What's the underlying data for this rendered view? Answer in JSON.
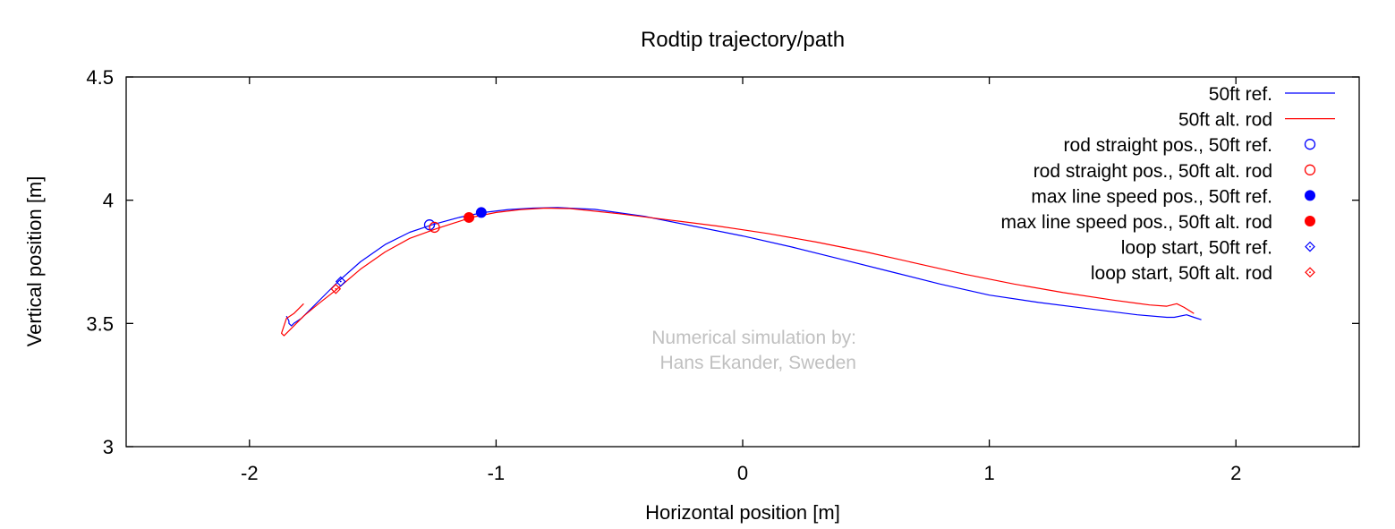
{
  "chart_data": {
    "type": "line",
    "title": "Rodtip trajectory/path",
    "xlabel": "Horizontal position [m]",
    "ylabel": "Vertical position [m]",
    "xlim": [
      -2.5,
      2.5
    ],
    "ylim": [
      3.0,
      4.5
    ],
    "xticks": [
      -2,
      -1,
      0,
      1,
      2
    ],
    "yticks": [
      3,
      3.5,
      4,
      4.5
    ],
    "xtick_labels": [
      "-2",
      "-1",
      "0",
      "1",
      "2"
    ],
    "ytick_labels": [
      "3",
      "3.5",
      "4",
      "4.5"
    ],
    "grid": false,
    "legend_position": "top-right",
    "annotation": [
      "Numerical simulation by:",
      "Hans Ekander, Sweden"
    ],
    "colors": {
      "ref": "#0000ff",
      "alt": "#ff0000"
    },
    "series": [
      {
        "name": "50ft ref.",
        "kind": "line",
        "color": "#0000ff",
        "x": [
          -1.85,
          -1.84,
          -1.84,
          -1.83,
          -1.82,
          -1.79,
          -1.75,
          -1.7,
          -1.64,
          -1.55,
          -1.45,
          -1.35,
          -1.26,
          -1.15,
          -1.05,
          -0.95,
          -0.85,
          -0.75,
          -0.6,
          -0.4,
          -0.2,
          0.0,
          0.2,
          0.4,
          0.6,
          0.8,
          1.0,
          1.2,
          1.4,
          1.6,
          1.72,
          1.75,
          1.8,
          1.83,
          1.86
        ],
        "y": [
          3.53,
          3.51,
          3.5,
          3.49,
          3.5,
          3.52,
          3.56,
          3.61,
          3.67,
          3.75,
          3.82,
          3.87,
          3.9,
          3.93,
          3.95,
          3.962,
          3.968,
          3.97,
          3.963,
          3.935,
          3.895,
          3.855,
          3.81,
          3.76,
          3.71,
          3.66,
          3.615,
          3.585,
          3.56,
          3.535,
          3.525,
          3.525,
          3.535,
          3.525,
          3.515
        ]
      },
      {
        "name": "50ft alt. rod",
        "kind": "line",
        "color": "#ff0000",
        "x": [
          -1.78,
          -1.8,
          -1.82,
          -1.85,
          -1.87,
          -1.86,
          -1.83,
          -1.78,
          -1.72,
          -1.65,
          -1.55,
          -1.45,
          -1.35,
          -1.24,
          -1.1,
          -1.0,
          -0.9,
          -0.8,
          -0.7,
          -0.5,
          -0.3,
          -0.1,
          0.1,
          0.3,
          0.5,
          0.7,
          0.9,
          1.1,
          1.3,
          1.5,
          1.65,
          1.72,
          1.76,
          1.79,
          1.83
        ],
        "y": [
          3.58,
          3.56,
          3.54,
          3.52,
          3.46,
          3.45,
          3.48,
          3.53,
          3.58,
          3.635,
          3.72,
          3.79,
          3.845,
          3.885,
          3.93,
          3.95,
          3.962,
          3.968,
          3.966,
          3.945,
          3.92,
          3.895,
          3.865,
          3.83,
          3.79,
          3.745,
          3.7,
          3.66,
          3.625,
          3.595,
          3.575,
          3.57,
          3.58,
          3.565,
          3.54
        ]
      },
      {
        "name": "rod straight pos., 50ft ref.",
        "kind": "point",
        "marker": "open-circle",
        "color": "#0000ff",
        "x": [
          -1.27
        ],
        "y": [
          3.9
        ]
      },
      {
        "name": "rod straight pos., 50ft alt. rod",
        "kind": "point",
        "marker": "open-circle",
        "color": "#ff0000",
        "x": [
          -1.25
        ],
        "y": [
          3.89
        ]
      },
      {
        "name": "max line speed pos., 50ft ref.",
        "kind": "point",
        "marker": "filled-circle",
        "color": "#0000ff",
        "x": [
          -1.06
        ],
        "y": [
          3.95
        ]
      },
      {
        "name": "max line speed pos., 50ft alt. rod",
        "kind": "point",
        "marker": "filled-circle",
        "color": "#ff0000",
        "x": [
          -1.11
        ],
        "y": [
          3.93
        ]
      },
      {
        "name": "loop start, 50ft ref.",
        "kind": "point",
        "marker": "open-diamond",
        "color": "#0000ff",
        "x": [
          -1.63
        ],
        "y": [
          3.67
        ]
      },
      {
        "name": "loop start, 50ft alt. rod",
        "kind": "point",
        "marker": "open-diamond",
        "color": "#ff0000",
        "x": [
          -1.65
        ],
        "y": [
          3.64
        ]
      }
    ]
  }
}
